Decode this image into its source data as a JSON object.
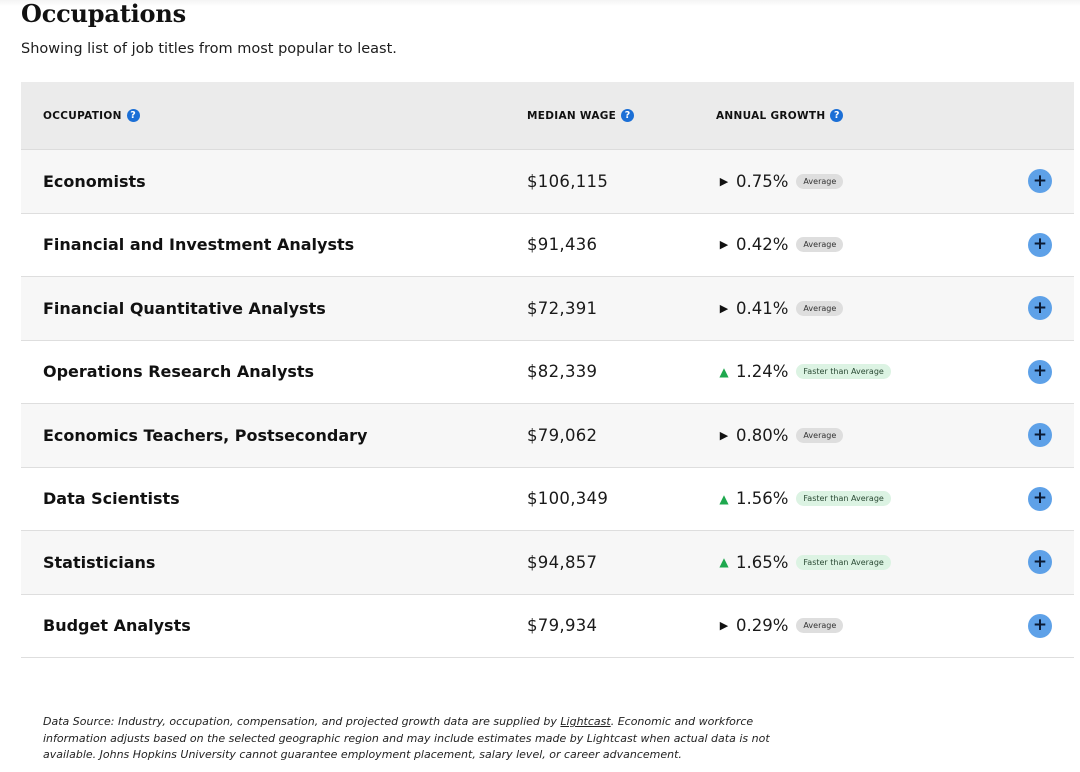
{
  "header": {
    "title": "Occupations",
    "subtitle": "Showing list of job titles from most popular to least."
  },
  "table": {
    "columns": {
      "occupation": "OCCUPATION",
      "median_wage": "MEDIAN WAGE",
      "annual_growth": "ANNUAL GROWTH"
    },
    "help_icon_glyph": "?",
    "expand_icon_glyph": "+",
    "rows": [
      {
        "occupation": "Economists",
        "wage": "$106,115",
        "growth": "0.75%",
        "trend": "flat",
        "badge": "Average"
      },
      {
        "occupation": "Financial and Investment Analysts",
        "wage": "$91,436",
        "growth": "0.42%",
        "trend": "flat",
        "badge": "Average"
      },
      {
        "occupation": "Financial Quantitative Analysts",
        "wage": "$72,391",
        "growth": "0.41%",
        "trend": "flat",
        "badge": "Average"
      },
      {
        "occupation": "Operations Research Analysts",
        "wage": "$82,339",
        "growth": "1.24%",
        "trend": "up",
        "badge": "Faster than Average"
      },
      {
        "occupation": "Economics Teachers, Postsecondary",
        "wage": "$79,062",
        "growth": "0.80%",
        "trend": "flat",
        "badge": "Average"
      },
      {
        "occupation": "Data Scientists",
        "wage": "$100,349",
        "growth": "1.56%",
        "trend": "up",
        "badge": "Faster than Average"
      },
      {
        "occupation": "Statisticians",
        "wage": "$94,857",
        "growth": "1.65%",
        "trend": "up",
        "badge": "Faster than Average"
      },
      {
        "occupation": "Budget Analysts",
        "wage": "$79,934",
        "growth": "0.29%",
        "trend": "flat",
        "badge": "Average"
      }
    ]
  },
  "footnote": {
    "before_link": "Data Source: Industry, occupation, compensation, and projected growth data are supplied by ",
    "link_text": "Lightcast",
    "after_link": ". Economic and workforce information adjusts based on the selected geographic region and may include estimates made by Lightcast when actual data is not available. Johns Hopkins University cannot guarantee employment placement, salary level, or career advancement."
  },
  "colors": {
    "header_bg": "#ebebeb",
    "row_alt_bg": "#f7f7f7",
    "help_icon": "#1b6fd6",
    "expand_button": "#5ea1e8",
    "growth_up": "#1ea84e",
    "badge_average_bg": "#dedede",
    "badge_faster_bg": "#dcf3e3"
  },
  "icons": {
    "help": "question-circle-icon",
    "expand": "plus-circle-icon",
    "trend_flat": "triangle-right-icon",
    "trend_up": "triangle-up-icon"
  }
}
